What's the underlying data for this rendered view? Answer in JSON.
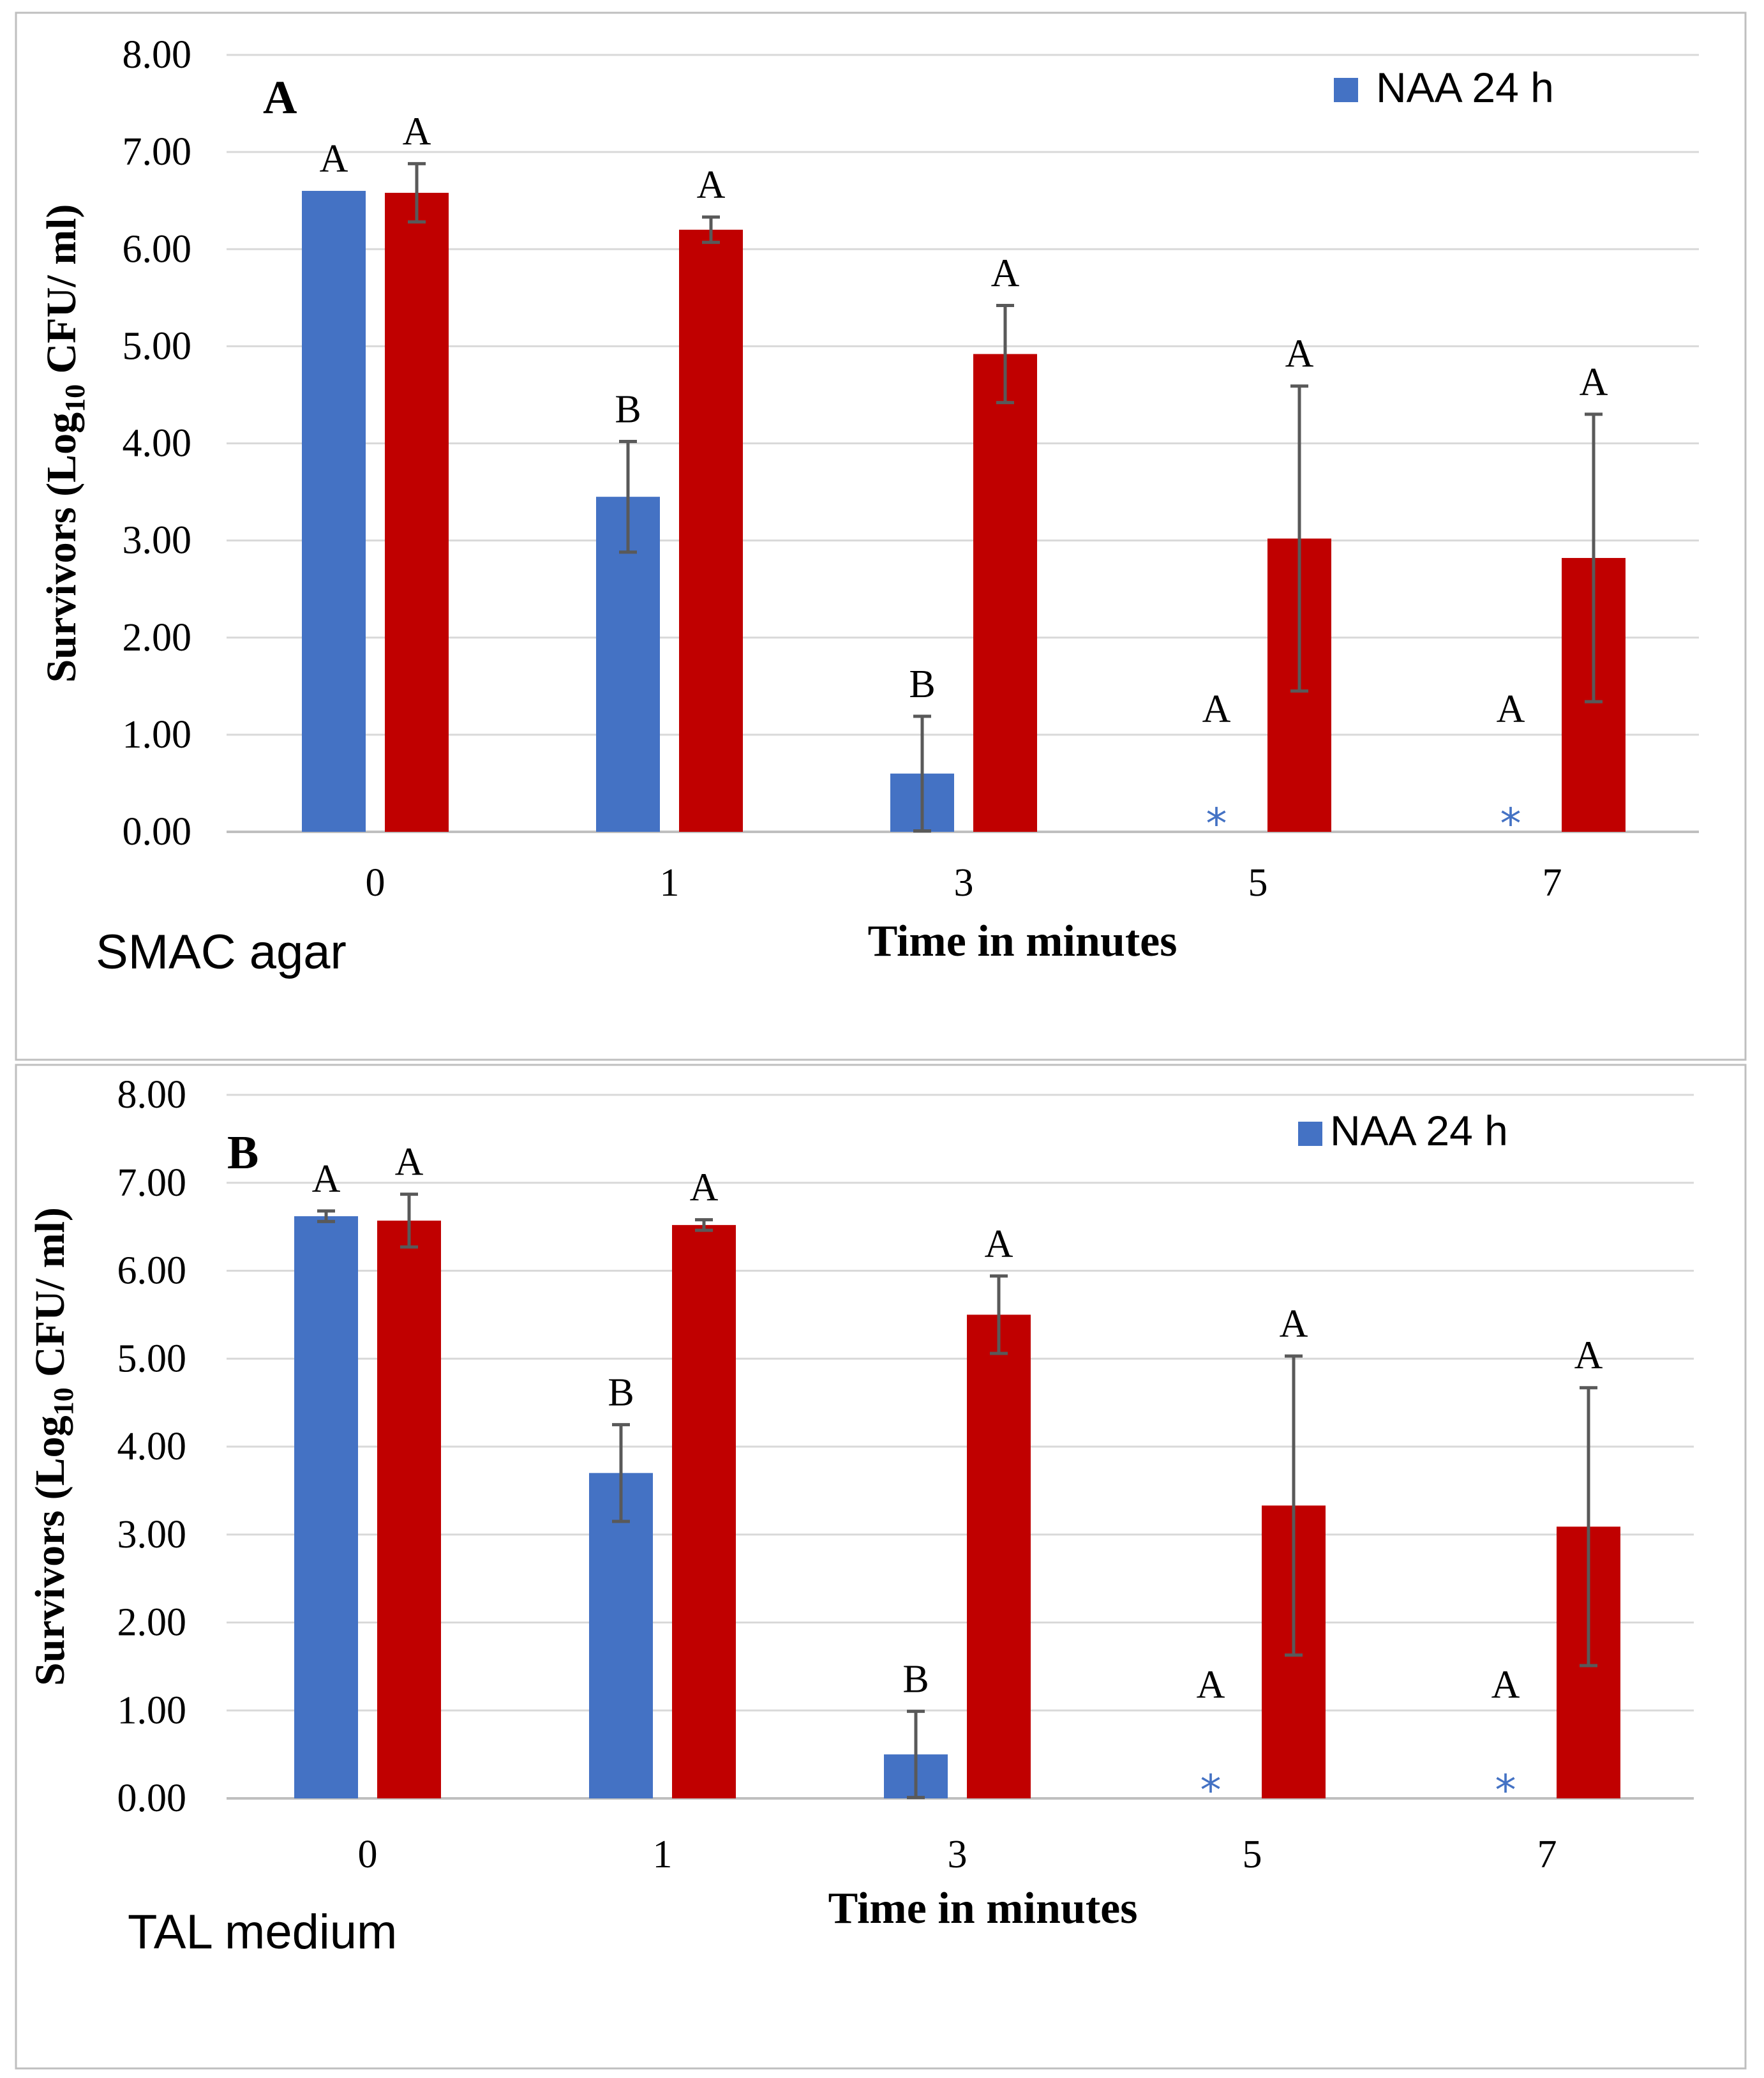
{
  "colors": {
    "naa": "#4472c4",
    "second": "#c00000",
    "grid": "#d9d9d9",
    "error_bar": "#595959",
    "asterisk": "#4472c4",
    "frame": "#bfbfbf"
  },
  "chart_data": [
    {
      "type": "bar",
      "panel_label": "A",
      "medium_label": "SMAC agar",
      "xlabel": "Time in minutes",
      "ylabel_prefix": "Survivors (Log",
      "ylabel_sub": "10",
      "ylabel_suffix": " CFU/ ml)",
      "ylim": [
        0,
        8
      ],
      "yticks": [
        "0.00",
        "1.00",
        "2.00",
        "3.00",
        "4.00",
        "5.00",
        "6.00",
        "7.00",
        "8.00"
      ],
      "grid": true,
      "legend_position": "top-right",
      "categories": [
        "0",
        "1",
        "3",
        "5",
        "7"
      ],
      "series": [
        {
          "name": "NAA 24 h",
          "color": "#4472c4",
          "values": [
            6.6,
            3.45,
            0.6,
            0,
            0
          ],
          "errors": [
            0,
            0.57,
            0.59,
            0,
            0
          ],
          "letters": [
            "A",
            "B",
            "B",
            "A",
            "A"
          ],
          "asterisks": [
            "",
            "",
            "",
            "*",
            "*"
          ]
        },
        {
          "name": "",
          "color": "#c00000",
          "values": [
            6.58,
            6.2,
            4.92,
            3.02,
            2.82
          ],
          "errors": [
            0.3,
            0.13,
            0.5,
            1.57,
            1.48
          ],
          "letters": [
            "A",
            "A",
            "A",
            "A",
            "A"
          ],
          "asterisks": [
            "",
            "",
            "",
            "",
            ""
          ]
        }
      ]
    },
    {
      "type": "bar",
      "panel_label": "B",
      "medium_label": "TAL medium",
      "xlabel": "Time in minutes",
      "ylabel_prefix": "Survivors (Log",
      "ylabel_sub": "10",
      "ylabel_suffix": " CFU/ ml)",
      "ylim": [
        0,
        8
      ],
      "yticks": [
        "0.00",
        "1.00",
        "2.00",
        "3.00",
        "4.00",
        "5.00",
        "6.00",
        "7.00",
        "8.00"
      ],
      "grid": true,
      "legend_position": "top-right",
      "categories": [
        "0",
        "1",
        "3",
        "5",
        "7"
      ],
      "series": [
        {
          "name": "NAA 24 h",
          "color": "#4472c4",
          "values": [
            6.62,
            3.7,
            0.5,
            0,
            0
          ],
          "errors": [
            0.06,
            0.55,
            0.49,
            0,
            0
          ],
          "letters": [
            "A",
            "B",
            "B",
            "A",
            "A"
          ],
          "asterisks": [
            "",
            "",
            "",
            "*",
            "*"
          ]
        },
        {
          "name": "",
          "color": "#c00000",
          "values": [
            6.57,
            6.52,
            5.5,
            3.33,
            3.09
          ],
          "errors": [
            0.3,
            0.06,
            0.44,
            1.7,
            1.58
          ],
          "letters": [
            "A",
            "A",
            "A",
            "A",
            "A"
          ],
          "asterisks": [
            "",
            "",
            "",
            "",
            ""
          ]
        }
      ]
    }
  ]
}
